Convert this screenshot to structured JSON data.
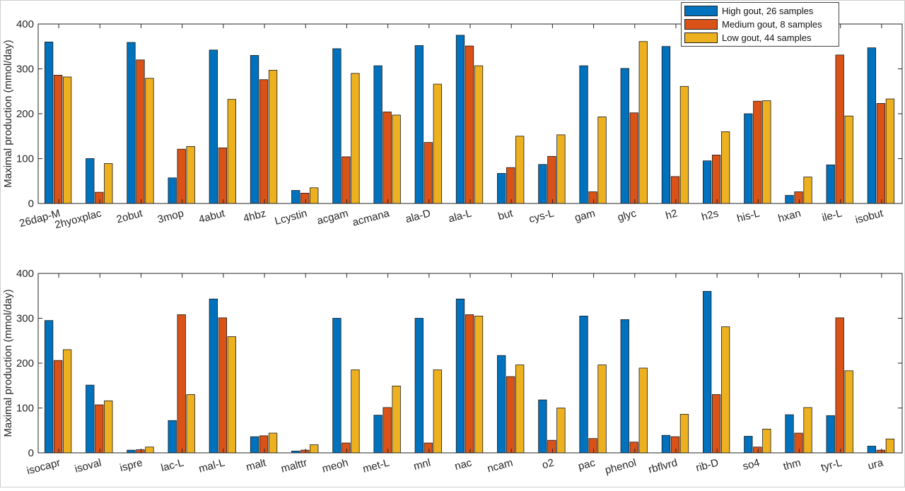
{
  "chart_data": [
    {
      "type": "bar",
      "ylabel": "Maximal production (mmol/day)",
      "ylim": [
        0,
        400
      ],
      "yticks": [
        0,
        100,
        200,
        300,
        400
      ],
      "grid": false,
      "categories": [
        "26dap-M",
        "2hyoxplac",
        "2obut",
        "3mop",
        "4abut",
        "4hbz",
        "Lcystin",
        "acgam",
        "acmana",
        "ala-D",
        "ala-L",
        "but",
        "cys-L",
        "gam",
        "glyc",
        "h2",
        "h2s",
        "his-L",
        "hxan",
        "ile-L",
        "isobut"
      ],
      "series": [
        {
          "name": "High gout, 26 samples",
          "color": "#0072BD",
          "values": [
            360,
            100,
            359,
            57,
            342,
            330,
            29,
            345,
            307,
            352,
            375,
            67,
            87,
            307,
            301,
            350,
            95,
            200,
            18,
            86,
            347
          ]
        },
        {
          "name": "Medium gout, 8 samples",
          "color": "#D95319",
          "values": [
            286,
            25,
            320,
            121,
            124,
            276,
            23,
            104,
            204,
            136,
            351,
            80,
            105,
            26,
            202,
            60,
            108,
            228,
            26,
            331,
            223
          ]
        },
        {
          "name": "Low gout, 44 samples",
          "color": "#EDB120",
          "values": [
            282,
            89,
            279,
            127,
            232,
            297,
            35,
            290,
            197,
            266,
            307,
            150,
            153,
            193,
            361,
            261,
            160,
            229,
            59,
            195,
            233
          ]
        }
      ]
    },
    {
      "type": "bar",
      "ylabel": "Maximal production (mmol/day)",
      "ylim": [
        0,
        400
      ],
      "yticks": [
        0,
        100,
        200,
        300,
        400
      ],
      "grid": false,
      "categories": [
        "isocapr",
        "isoval",
        "ispre",
        "lac-L",
        "mal-L",
        "malt",
        "malttr",
        "meoh",
        "met-L",
        "mnl",
        "nac",
        "ncam",
        "o2",
        "pac",
        "phenol",
        "rbflvrd",
        "rib-D",
        "so4",
        "thm",
        "tyr-L",
        "ura"
      ],
      "series": [
        {
          "name": "High gout, 26 samples",
          "color": "#0072BD",
          "values": [
            295,
            151,
            6,
            72,
            343,
            36,
            4,
            300,
            84,
            300,
            343,
            217,
            118,
            305,
            297,
            39,
            360,
            37,
            85,
            83,
            15
          ]
        },
        {
          "name": "Medium gout, 8 samples",
          "color": "#D95319",
          "values": [
            206,
            107,
            7,
            308,
            301,
            38,
            6,
            22,
            101,
            22,
            308,
            170,
            28,
            32,
            24,
            36,
            130,
            13,
            44,
            301,
            6
          ]
        },
        {
          "name": "Low gout, 44 samples",
          "color": "#EDB120",
          "values": [
            230,
            116,
            13,
            130,
            259,
            44,
            18,
            185,
            149,
            185,
            305,
            196,
            100,
            196,
            189,
            86,
            281,
            53,
            101,
            183,
            31
          ]
        }
      ]
    }
  ],
  "legend": {
    "position": "top-right",
    "entries": [
      {
        "label": "High gout, 26 samples",
        "color": "#0072BD"
      },
      {
        "label": "Medium gout, 8 samples",
        "color": "#D95319"
      },
      {
        "label": "Low gout, 44 samples",
        "color": "#EDB120"
      }
    ]
  }
}
